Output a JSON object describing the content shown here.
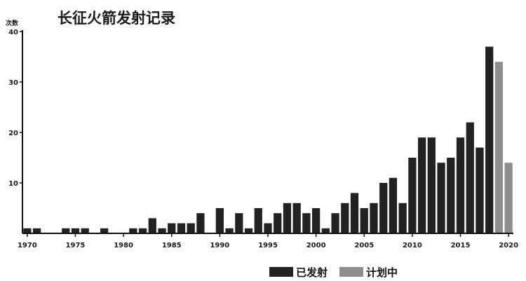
{
  "chart_data": {
    "type": "bar",
    "title": "长征火箭发射记录",
    "ylabel": "次数",
    "xlabel": "",
    "ylim": [
      0,
      40
    ],
    "yticks": [
      10,
      20,
      30,
      40
    ],
    "xticks": [
      1970,
      1975,
      1980,
      1985,
      1990,
      1995,
      2000,
      2005,
      2010,
      2015,
      2020
    ],
    "xlim": [
      1969.5,
      2020.5
    ],
    "colors": {
      "launched": "#222222",
      "planned": "#8e8e8e",
      "axis": "#111111"
    },
    "series": [
      {
        "name": "已发射",
        "x": [
          1970,
          1971,
          1974,
          1975,
          1976,
          1978,
          1981,
          1982,
          1983,
          1984,
          1985,
          1986,
          1987,
          1988,
          1990,
          1991,
          1992,
          1993,
          1994,
          1995,
          1996,
          1997,
          1998,
          1999,
          2000,
          2001,
          2002,
          2003,
          2004,
          2005,
          2006,
          2007,
          2008,
          2009,
          2010,
          2011,
          2012,
          2013,
          2014,
          2015,
          2016,
          2017,
          2018
        ],
        "values": [
          1,
          1,
          1,
          1,
          1,
          1,
          1,
          1,
          3,
          1,
          2,
          2,
          2,
          4,
          5,
          1,
          4,
          1,
          5,
          2,
          4,
          6,
          6,
          4,
          5,
          1,
          4,
          6,
          8,
          5,
          6,
          10,
          11,
          6,
          15,
          19,
          19,
          14,
          15,
          19,
          22,
          17,
          37
        ]
      },
      {
        "name": "计划中",
        "x": [
          2019,
          2020
        ],
        "values": [
          34,
          14
        ]
      }
    ],
    "legend": {
      "position": "bottom-right"
    }
  }
}
